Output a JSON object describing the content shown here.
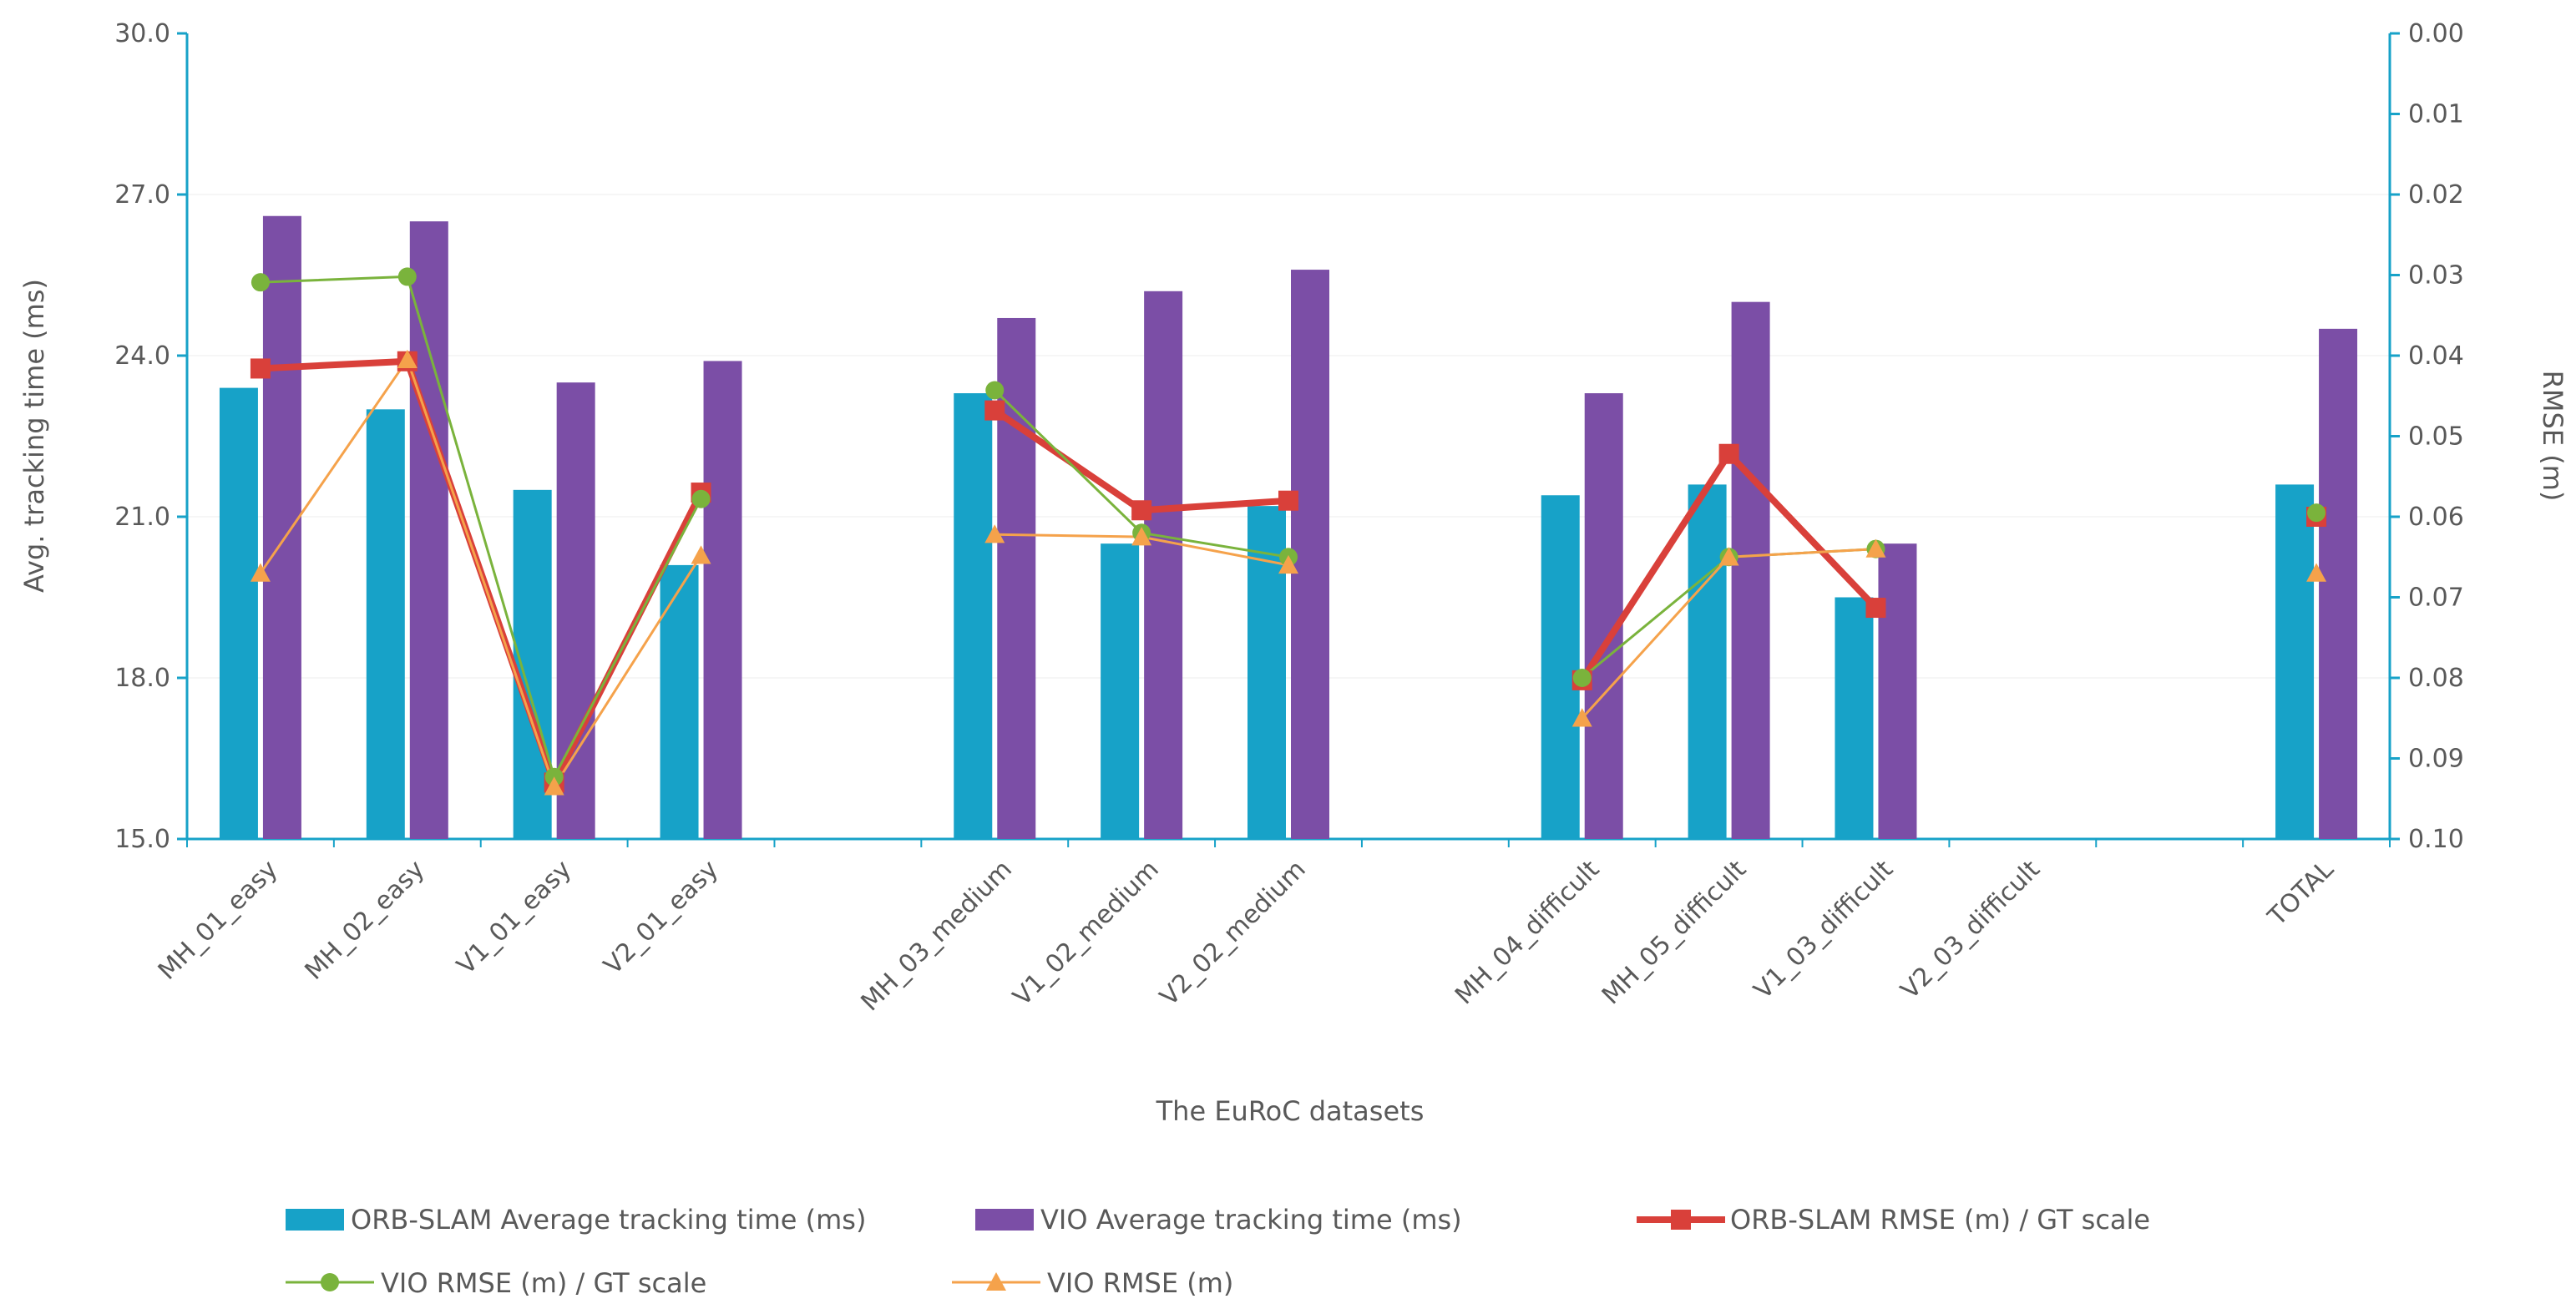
{
  "chart_data": {
    "type": "bar",
    "xlabel": "The EuRoC datasets",
    "ylabel": "Avg. tracking time (ms)",
    "y2label": "RMSE (m)",
    "ylim": [
      15.0,
      30.0
    ],
    "y2lim": [
      0.1,
      0.0
    ],
    "y_ticks": [
      "15.0",
      "18.0",
      "21.0",
      "24.0",
      "27.0",
      "30.0"
    ],
    "y2_ticks": [
      "0.00",
      "0.01",
      "0.02",
      "0.03",
      "0.04",
      "0.05",
      "0.06",
      "0.07",
      "0.08",
      "0.09",
      "0.10"
    ],
    "categories": [
      "MH_01_easy",
      "MH_02_easy",
      "V1_01_easy",
      "V2_01_easy",
      "",
      "MH_03_medium",
      "V1_02_medium",
      "V2_02_medium",
      "",
      "MH_04_difficult",
      "MH_05_difficult",
      "V1_03_difficult",
      "V2_03_difficult",
      "",
      "TOTAL"
    ],
    "series": [
      {
        "name": "ORB-SLAM Average tracking time (ms)",
        "kind": "bar",
        "axis": "left",
        "color": "#17a2c8",
        "values": [
          23.4,
          23.0,
          21.5,
          20.1,
          null,
          23.3,
          20.5,
          21.2,
          null,
          21.4,
          21.6,
          19.5,
          null,
          null,
          21.6
        ]
      },
      {
        "name": "VIO Average tracking time (ms)",
        "kind": "bar",
        "axis": "left",
        "color": "#7b4ea6",
        "values": [
          26.6,
          26.5,
          23.5,
          23.9,
          null,
          24.7,
          25.2,
          25.6,
          null,
          23.3,
          25.0,
          20.5,
          null,
          null,
          24.5
        ]
      },
      {
        "name": "ORB-SLAM RMSE (m) / GT scale",
        "kind": "line",
        "axis": "right",
        "color": "#d9403a",
        "marker": "square",
        "segments": [
          [
            0,
            3
          ],
          [
            5,
            7
          ],
          [
            9,
            11
          ],
          [
            14,
            14
          ]
        ],
        "values": [
          0.0416,
          0.0407,
          0.093,
          0.057,
          null,
          0.0468,
          0.0592,
          0.058,
          null,
          0.0803,
          0.0522,
          0.0713,
          null,
          null,
          0.06
        ]
      },
      {
        "name": "VIO RMSE (m) / GT scale",
        "kind": "line",
        "axis": "right",
        "color": "#7ab33c",
        "marker": "circle",
        "segments": [
          [
            0,
            3
          ],
          [
            5,
            7
          ],
          [
            9,
            11
          ],
          [
            14,
            14
          ]
        ],
        "values": [
          0.0309,
          0.0302,
          0.0923,
          0.0578,
          null,
          0.0443,
          0.062,
          0.065,
          null,
          0.08,
          0.065,
          0.064,
          null,
          null,
          0.0595
        ]
      },
      {
        "name": "VIO RMSE (m)",
        "kind": "line",
        "axis": "right",
        "color": "#f5a24b",
        "marker": "triangle",
        "segments": [
          [
            0,
            3
          ],
          [
            5,
            7
          ],
          [
            9,
            11
          ],
          [
            14,
            14
          ]
        ],
        "values": [
          0.067,
          0.0405,
          0.0935,
          0.0648,
          null,
          0.0622,
          0.0625,
          0.066,
          null,
          0.085,
          0.065,
          0.064,
          null,
          null,
          0.067
        ]
      }
    ]
  }
}
